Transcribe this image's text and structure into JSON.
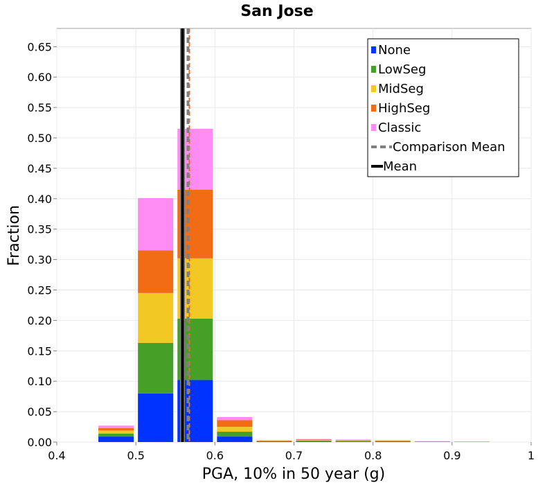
{
  "chart_data": {
    "type": "bar",
    "stacked": true,
    "title": "San Jose",
    "xlabel": "PGA, 10% in 50 year (g)",
    "ylabel": "Fraction",
    "xlim": [
      0.4,
      1.0
    ],
    "ylim": [
      0,
      0.68
    ],
    "x_ticks": [
      "0.4",
      "0.5",
      "0.6",
      "0.7",
      "0.8",
      "0.9",
      "1"
    ],
    "y_ticks": [
      "0.00",
      "0.05",
      "0.10",
      "0.15",
      "0.20",
      "0.25",
      "0.30",
      "0.35",
      "0.40",
      "0.45",
      "0.50",
      "0.55",
      "0.60",
      "0.65"
    ],
    "grid": true,
    "legend_position": "top-right",
    "bins": [
      {
        "x0": 0.45,
        "x1": 0.5
      },
      {
        "x0": 0.5,
        "x1": 0.55
      },
      {
        "x0": 0.55,
        "x1": 0.6
      },
      {
        "x0": 0.6,
        "x1": 0.65
      },
      {
        "x0": 0.65,
        "x1": 0.7
      },
      {
        "x0": 0.7,
        "x1": 0.75
      },
      {
        "x0": 0.75,
        "x1": 0.8
      },
      {
        "x0": 0.8,
        "x1": 0.85
      },
      {
        "x0": 0.85,
        "x1": 0.9
      },
      {
        "x0": 0.9,
        "x1": 0.95
      }
    ],
    "series": [
      {
        "name": "None",
        "color": "#0033ff",
        "values": [
          0.009,
          0.08,
          0.102,
          0.009,
          0.0006,
          0.001,
          0.0008,
          0.0006,
          0.0003,
          0.0002
        ]
      },
      {
        "name": "LowSeg",
        "color": "#46a028",
        "values": [
          0.005,
          0.083,
          0.101,
          0.008,
          0.0006,
          0.001,
          0.0008,
          0.0006,
          0.0003,
          0.0002
        ]
      },
      {
        "name": "MidSeg",
        "color": "#f2c825",
        "values": [
          0.005,
          0.082,
          0.099,
          0.008,
          0.0006,
          0.001,
          0.0008,
          0.0006,
          0.0003,
          0.0002
        ]
      },
      {
        "name": "HighSeg",
        "color": "#f26b15",
        "values": [
          0.004,
          0.07,
          0.113,
          0.011,
          0.0006,
          0.001,
          0.0008,
          0.0006,
          0.0003,
          0.0002
        ]
      },
      {
        "name": "Classic",
        "color": "#ff8cf2",
        "values": [
          0.004,
          0.086,
          0.1,
          0.005,
          0.0006,
          0.001,
          0.0008,
          0.0006,
          0.0003,
          0.0002
        ]
      }
    ],
    "lines": [
      {
        "name": "Comparison Mean",
        "x": 0.566,
        "color": "#808080",
        "dashed": true,
        "highlight_color": "#f26b15"
      },
      {
        "name": "Mean",
        "x": 0.559,
        "color": "#000000",
        "dashed": false,
        "highlight_color": "#808080"
      }
    ]
  }
}
